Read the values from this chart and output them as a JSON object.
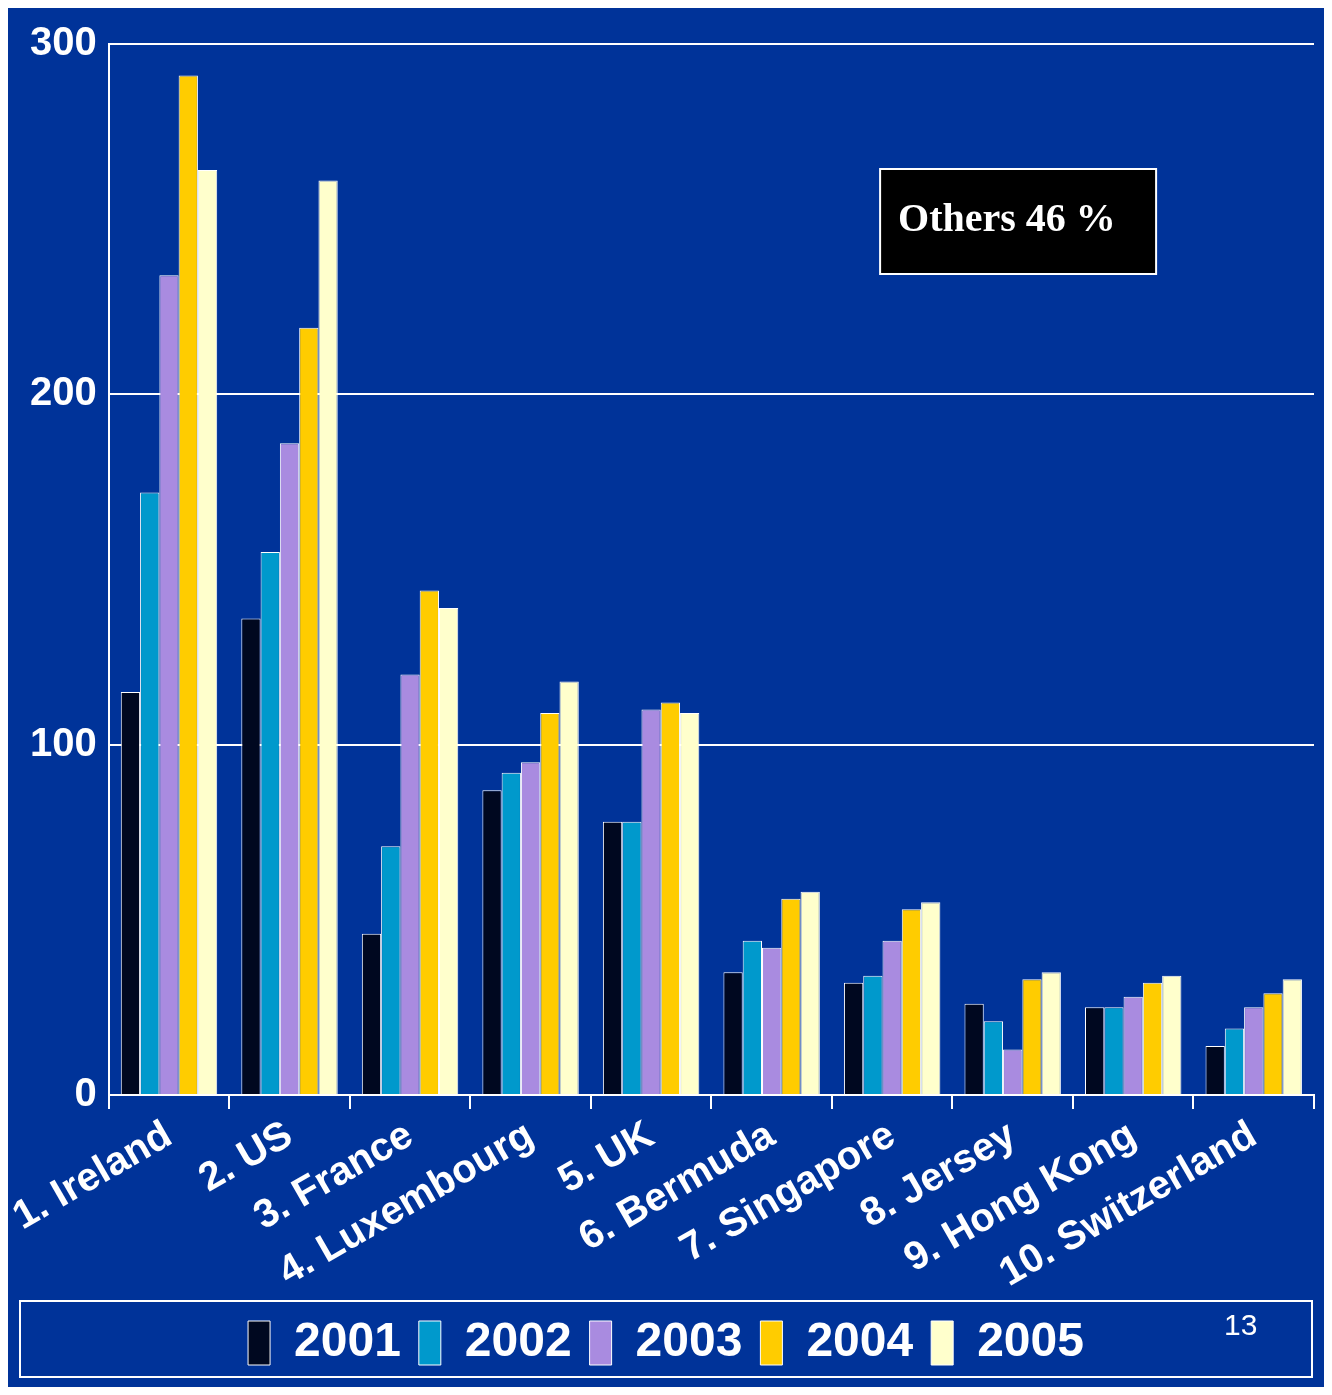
{
  "chart_data": {
    "type": "bar",
    "categories": [
      "1. Ireland",
      "2. US",
      "3. France",
      "4. Luxembourg",
      "5. UK",
      "6. Bermuda",
      "7. Singapore",
      "8. Jersey",
      "9. Hong Kong",
      "10. Switzerland"
    ],
    "series": [
      {
        "name": "2001",
        "color": "#000820",
        "values": [
          115,
          136,
          46,
          87,
          78,
          35,
          32,
          26,
          25,
          14
        ]
      },
      {
        "name": "2002",
        "color": "#0099cc",
        "values": [
          172,
          155,
          71,
          92,
          78,
          44,
          34,
          21,
          25,
          19
        ]
      },
      {
        "name": "2003",
        "color": "#a98be0",
        "values": [
          234,
          186,
          120,
          95,
          110,
          42,
          44,
          13,
          28,
          25
        ]
      },
      {
        "name": "2004",
        "color": "#ffcc00",
        "values": [
          291,
          219,
          144,
          109,
          112,
          56,
          53,
          33,
          32,
          29
        ]
      },
      {
        "name": "2005",
        "color": "#ffffcc",
        "values": [
          264,
          261,
          139,
          118,
          109,
          58,
          55,
          35,
          34,
          33
        ]
      }
    ],
    "ylim": [
      0,
      300
    ],
    "yticks": [
      0,
      100,
      200,
      300
    ],
    "grid": "y",
    "legend": "bottom",
    "annotations": [
      "Others 46 %",
      "13"
    ]
  }
}
